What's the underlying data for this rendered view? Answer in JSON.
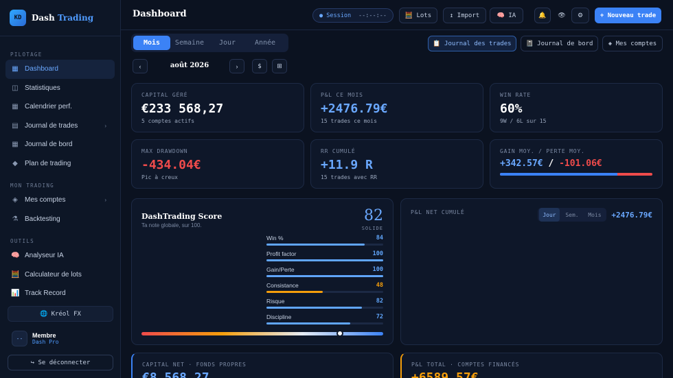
{
  "brand": {
    "logo": "KD",
    "name_a": "Dash",
    "name_b": "Trading"
  },
  "sidebar": {
    "sections": [
      "PILOTAGE",
      "MON TRADING",
      "OUTILS"
    ],
    "items": [
      {
        "label": "Dashboard",
        "icon": "grid-icon",
        "glyph": "▦",
        "active": true
      },
      {
        "label": "Statistiques",
        "icon": "panels-icon",
        "glyph": "◫"
      },
      {
        "label": "Calendrier perf.",
        "icon": "calendar-icon",
        "glyph": "▦"
      },
      {
        "label": "Journal de trades",
        "icon": "list-icon",
        "glyph": "▤",
        "chevron": "›"
      },
      {
        "label": "Journal de bord",
        "icon": "notebook-icon",
        "glyph": "▦"
      },
      {
        "label": "Plan de trading",
        "icon": "diamond-icon",
        "glyph": "◆"
      },
      {
        "label": "Mes comptes",
        "icon": "accounts-icon",
        "glyph": "◈",
        "chevron": "›"
      },
      {
        "label": "Backtesting",
        "icon": "flask-icon",
        "glyph": "⚗"
      },
      {
        "label": "Analyseur IA",
        "icon": "brain-icon",
        "glyph": "🧠"
      },
      {
        "label": "Calculateur de lots",
        "icon": "calculator-icon",
        "glyph": "🧮"
      },
      {
        "label": "Track Record",
        "icon": "chart-icon",
        "glyph": "📊"
      }
    ],
    "kreol": "🌐 Kréol FX",
    "member": {
      "avatar": "--",
      "name": "Membre",
      "plan": "Dash Pro"
    },
    "logout": "↪ Se déconnecter"
  },
  "topbar": {
    "title": "Dashboard",
    "session_label": "● Session",
    "session_time": "--:--:--",
    "lots": "🧮 Lots",
    "import": "↥ Import",
    "ia": "🧠 IA",
    "bell": "🔔",
    "eye": "👁",
    "gear": "⚙",
    "new_trade": "+ Nouveau trade"
  },
  "period_tabs": [
    "Mois",
    "Semaine",
    "Jour",
    "Année"
  ],
  "views": {
    "trades": "📋 Journal des trades",
    "board": "📓 Journal de bord",
    "accounts": "◈ Mes comptes"
  },
  "month_nav": {
    "prev": "‹",
    "label": "août 2026",
    "next": "›",
    "dollar": "$",
    "grid": "⊞"
  },
  "kpis": {
    "capital": {
      "label": "CAPITAL GÉRÉ",
      "value": "€233 568,27",
      "sub": "5 comptes actifs"
    },
    "pnl": {
      "label": "P&L CE MOIS",
      "value": "+2476.79€",
      "sub": "15 trades ce mois"
    },
    "winrate": {
      "label": "WIN RATE",
      "value": "60%",
      "sub": "9W / 6L sur 15"
    },
    "drawdown": {
      "label": "MAX DRAWDOWN",
      "value": "-434.04€",
      "sub": "Pic à creux"
    },
    "rr": {
      "label": "RR CUMULÉ",
      "value": "+11.9 R",
      "sub": "15 trades avec RR"
    },
    "gainloss": {
      "label": "GAIN MOY. / PERTE MOY.",
      "gain": "+342.57€",
      "sep": "/",
      "loss": "-101.06€",
      "gain_share": 0.77
    }
  },
  "score": {
    "title": "DashTrading Score",
    "subtitle": "Ta note globale, sur 100.",
    "value": "82",
    "grade": "SOLIDE",
    "gauge": 0.82,
    "metrics": [
      {
        "name": "Win %",
        "value": "84",
        "level": 0.84,
        "color": "#60a5fa"
      },
      {
        "name": "Profit factor",
        "value": "100",
        "level": 1.0,
        "color": "#60a5fa"
      },
      {
        "name": "Gain/Perte",
        "value": "100",
        "level": 1.0,
        "color": "#60a5fa"
      },
      {
        "name": "Consistance",
        "value": "48",
        "level": 0.48,
        "color": "#f59e0b"
      },
      {
        "name": "Risque",
        "value": "82",
        "level": 0.82,
        "color": "#60a5fa"
      },
      {
        "name": "Discipline",
        "value": "72",
        "level": 0.72,
        "color": "#60a5fa"
      }
    ]
  },
  "cumul": {
    "label": "P&L NET CUMULÉ",
    "tabs": [
      "Jour",
      "Sem.",
      "Mois"
    ],
    "value": "+2476.79€"
  },
  "bottom": {
    "capital_net": {
      "label": "CAPITAL NET · FONDS PROPRES",
      "value": "€8 568,27"
    },
    "pnl_total": {
      "label": "P&L TOTAL · COMPTES FINANCÉS",
      "value": "+6589.57€"
    }
  }
}
